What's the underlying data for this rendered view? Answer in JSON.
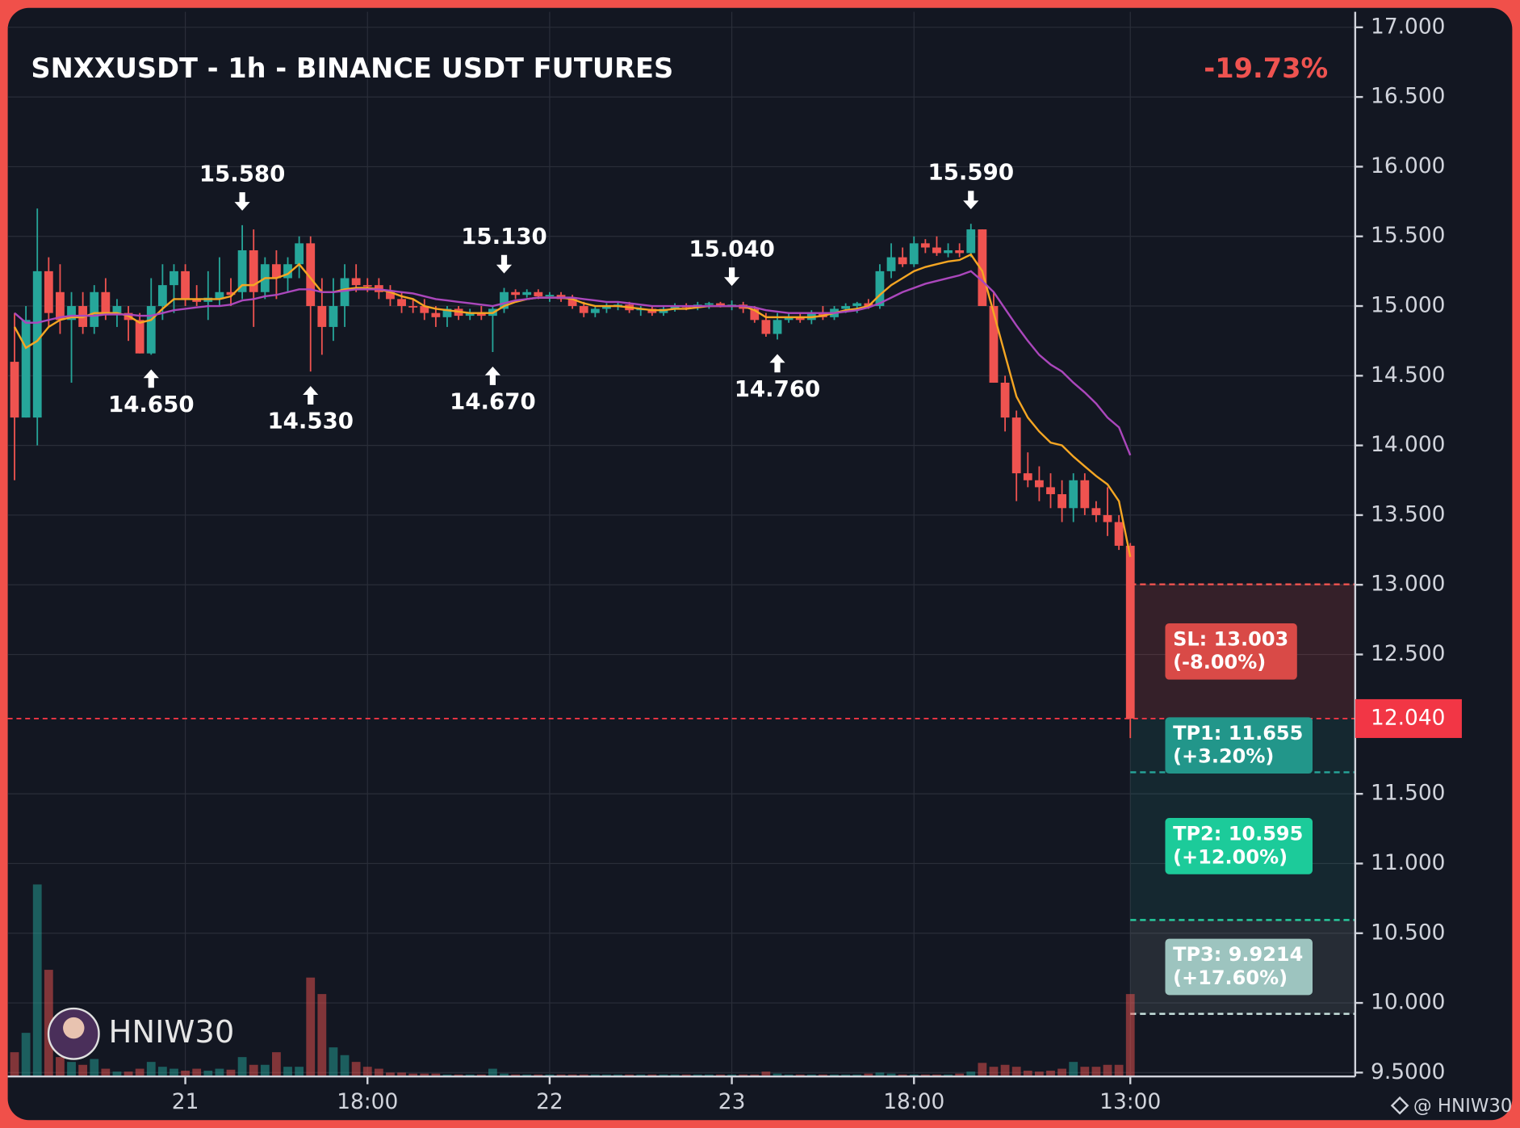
{
  "chart_data": {
    "type": "candlestick",
    "title": "SNXXUSDT - 1h - BINANCE USDT FUTURES",
    "change": "-19.73%",
    "watermark": "HNIW30",
    "credit": "@ HNIW30",
    "up_color": "#26a69a",
    "down_color": "#ef5350",
    "grid": true,
    "ylim": [
      9.5,
      17
    ],
    "yticks": [
      {
        "value": 17,
        "label": "17.000"
      },
      {
        "value": 16.5,
        "label": "16.500"
      },
      {
        "value": 16,
        "label": "16.000"
      },
      {
        "value": 15.5,
        "label": "15.500"
      },
      {
        "value": 15,
        "label": "15.000"
      },
      {
        "value": 14.5,
        "label": "14.500"
      },
      {
        "value": 14,
        "label": "14.000"
      },
      {
        "value": 13.5,
        "label": "13.500"
      },
      {
        "value": 13,
        "label": "13.000"
      },
      {
        "value": 12.5,
        "label": "12.500"
      },
      {
        "value": 11.5,
        "label": "11.500"
      },
      {
        "value": 11,
        "label": "11.000"
      },
      {
        "value": 10.5,
        "label": "10.500"
      },
      {
        "value": 10,
        "label": "10.000"
      },
      {
        "value": 9.5,
        "label": "9.5000"
      }
    ],
    "categories": [
      null,
      null,
      null,
      null,
      null,
      null,
      null,
      null,
      null,
      null,
      null,
      null,
      null,
      null,
      null,
      "21",
      null,
      null,
      null,
      null,
      null,
      null,
      null,
      null,
      null,
      null,
      null,
      null,
      null,
      null,
      null,
      "18:00",
      null,
      null,
      null,
      null,
      null,
      null,
      null,
      null,
      null,
      null,
      null,
      null,
      null,
      null,
      null,
      "22",
      null,
      null,
      null,
      null,
      null,
      null,
      null,
      null,
      null,
      null,
      null,
      null,
      null,
      null,
      null,
      "23",
      null,
      null,
      null,
      null,
      null,
      null,
      null,
      null,
      null,
      null,
      null,
      null,
      null,
      null,
      null,
      "18:00",
      null,
      null,
      null,
      null,
      null,
      null,
      null,
      null,
      null,
      null,
      null,
      null,
      null,
      null,
      null,
      null,
      null,
      null,
      "13:00"
    ],
    "candles": [
      {
        "o": 14.6,
        "h": 14.95,
        "l": 13.75,
        "c": 14.2
      },
      {
        "o": 14.2,
        "h": 15.0,
        "l": 14.2,
        "c": 14.9
      },
      {
        "o": 14.2,
        "h": 15.7,
        "l": 14.0,
        "c": 15.25
      },
      {
        "o": 15.25,
        "h": 15.35,
        "l": 14.85,
        "c": 14.95
      },
      {
        "o": 15.1,
        "h": 15.3,
        "l": 14.8,
        "c": 14.9
      },
      {
        "o": 14.9,
        "h": 15.1,
        "l": 14.45,
        "c": 15.0
      },
      {
        "o": 15.0,
        "h": 15.1,
        "l": 14.8,
        "c": 14.85
      },
      {
        "o": 14.85,
        "h": 15.15,
        "l": 14.8,
        "c": 15.1
      },
      {
        "o": 15.1,
        "h": 15.2,
        "l": 14.9,
        "c": 14.95
      },
      {
        "o": 14.95,
        "h": 15.05,
        "l": 14.85,
        "c": 15.0
      },
      {
        "o": 14.95,
        "h": 15.0,
        "l": 14.75,
        "c": 14.9
      },
      {
        "o": 14.9,
        "h": 14.95,
        "l": 14.66,
        "c": 14.66
      },
      {
        "o": 14.66,
        "h": 15.2,
        "l": 14.65,
        "c": 15.0,
        "low_label": "14.650"
      },
      {
        "o": 15.0,
        "h": 15.3,
        "l": 14.9,
        "c": 15.15
      },
      {
        "o": 15.15,
        "h": 15.3,
        "l": 14.95,
        "c": 15.25
      },
      {
        "o": 15.25,
        "h": 15.3,
        "l": 15.0,
        "c": 15.05
      },
      {
        "o": 15.05,
        "h": 15.15,
        "l": 15.0,
        "c": 15.03
      },
      {
        "o": 15.03,
        "h": 15.25,
        "l": 14.9,
        "c": 15.06
      },
      {
        "o": 15.05,
        "h": 15.35,
        "l": 15.0,
        "c": 15.1
      },
      {
        "o": 15.1,
        "h": 15.2,
        "l": 15.0,
        "c": 15.08
      },
      {
        "o": 15.1,
        "h": 15.58,
        "l": 15.05,
        "c": 15.4,
        "high_label": "15.580"
      },
      {
        "o": 15.4,
        "h": 15.55,
        "l": 14.85,
        "c": 15.1
      },
      {
        "o": 15.1,
        "h": 15.35,
        "l": 15.05,
        "c": 15.3
      },
      {
        "o": 15.3,
        "h": 15.4,
        "l": 15.05,
        "c": 15.2
      },
      {
        "o": 15.2,
        "h": 15.35,
        "l": 15.1,
        "c": 15.3
      },
      {
        "o": 15.3,
        "h": 15.5,
        "l": 15.2,
        "c": 15.45
      },
      {
        "o": 15.45,
        "h": 15.5,
        "l": 14.53,
        "c": 15.0,
        "low_label": "14.530"
      },
      {
        "o": 15.0,
        "h": 15.2,
        "l": 14.65,
        "c": 14.85
      },
      {
        "o": 14.85,
        "h": 15.2,
        "l": 14.75,
        "c": 15.0
      },
      {
        "o": 15.0,
        "h": 15.3,
        "l": 14.85,
        "c": 15.2
      },
      {
        "o": 15.2,
        "h": 15.3,
        "l": 15.1,
        "c": 15.15
      },
      {
        "o": 15.15,
        "h": 15.2,
        "l": 15.1,
        "c": 15.14
      },
      {
        "o": 15.15,
        "h": 15.2,
        "l": 15.05,
        "c": 15.1
      },
      {
        "o": 15.1,
        "h": 15.15,
        "l": 15.0,
        "c": 15.05
      },
      {
        "o": 15.05,
        "h": 15.1,
        "l": 14.95,
        "c": 15.0
      },
      {
        "o": 15.0,
        "h": 15.05,
        "l": 14.95,
        "c": 14.99
      },
      {
        "o": 15.0,
        "h": 15.05,
        "l": 14.9,
        "c": 14.95
      },
      {
        "o": 14.95,
        "h": 15.0,
        "l": 14.85,
        "c": 14.92
      },
      {
        "o": 14.92,
        "h": 15.0,
        "l": 14.85,
        "c": 14.98
      },
      {
        "o": 14.98,
        "h": 15.0,
        "l": 14.9,
        "c": 14.93
      },
      {
        "o": 14.93,
        "h": 14.98,
        "l": 14.9,
        "c": 14.95
      },
      {
        "o": 14.95,
        "h": 15.0,
        "l": 14.9,
        "c": 14.93
      },
      {
        "o": 14.93,
        "h": 15.0,
        "l": 14.67,
        "c": 14.98,
        "low_label": "14.670"
      },
      {
        "o": 14.98,
        "h": 15.13,
        "l": 14.95,
        "c": 15.1,
        "high_label": "15.130"
      },
      {
        "o": 15.1,
        "h": 15.12,
        "l": 15.05,
        "c": 15.08
      },
      {
        "o": 15.08,
        "h": 15.12,
        "l": 15.06,
        "c": 15.1
      },
      {
        "o": 15.1,
        "h": 15.12,
        "l": 15.05,
        "c": 15.07
      },
      {
        "o": 15.07,
        "h": 15.1,
        "l": 15.03,
        "c": 15.08
      },
      {
        "o": 15.08,
        "h": 15.1,
        "l": 15.03,
        "c": 15.05
      },
      {
        "o": 15.05,
        "h": 15.08,
        "l": 14.98,
        "c": 15.0
      },
      {
        "o": 15.0,
        "h": 15.03,
        "l": 14.92,
        "c": 14.95
      },
      {
        "o": 14.95,
        "h": 15.0,
        "l": 14.92,
        "c": 14.98
      },
      {
        "o": 14.98,
        "h": 15.02,
        "l": 14.95,
        "c": 15.0
      },
      {
        "o": 15.0,
        "h": 15.03,
        "l": 14.97,
        "c": 15.01
      },
      {
        "o": 15.01,
        "h": 15.03,
        "l": 14.95,
        "c": 14.97
      },
      {
        "o": 14.97,
        "h": 15.0,
        "l": 14.93,
        "c": 14.98
      },
      {
        "o": 14.98,
        "h": 15.0,
        "l": 14.93,
        "c": 14.95
      },
      {
        "o": 14.95,
        "h": 15.0,
        "l": 14.93,
        "c": 14.98
      },
      {
        "o": 14.98,
        "h": 15.02,
        "l": 14.96,
        "c": 15.0
      },
      {
        "o": 15.0,
        "h": 15.02,
        "l": 14.97,
        "c": 14.99
      },
      {
        "o": 14.99,
        "h": 15.03,
        "l": 14.97,
        "c": 15.01
      },
      {
        "o": 15.01,
        "h": 15.03,
        "l": 14.98,
        "c": 15.02
      },
      {
        "o": 15.02,
        "h": 15.03,
        "l": 14.99,
        "c": 15.0
      },
      {
        "o": 15.0,
        "h": 15.04,
        "l": 14.97,
        "c": 15.01,
        "high_label": "15.040"
      },
      {
        "o": 15.01,
        "h": 15.03,
        "l": 14.95,
        "c": 14.98
      },
      {
        "o": 14.98,
        "h": 15.0,
        "l": 14.88,
        "c": 14.9
      },
      {
        "o": 14.9,
        "h": 14.95,
        "l": 14.78,
        "c": 14.8
      },
      {
        "o": 14.8,
        "h": 14.95,
        "l": 14.76,
        "c": 14.9,
        "low_label": "14.760"
      },
      {
        "o": 14.9,
        "h": 14.95,
        "l": 14.88,
        "c": 14.92
      },
      {
        "o": 14.92,
        "h": 14.95,
        "l": 14.88,
        "c": 14.9
      },
      {
        "o": 14.9,
        "h": 14.97,
        "l": 14.87,
        "c": 14.95
      },
      {
        "o": 14.95,
        "h": 15.0,
        "l": 14.9,
        "c": 14.92
      },
      {
        "o": 14.92,
        "h": 15.0,
        "l": 14.9,
        "c": 14.98
      },
      {
        "o": 14.98,
        "h": 15.02,
        "l": 14.95,
        "c": 15.0
      },
      {
        "o": 15.0,
        "h": 15.03,
        "l": 14.95,
        "c": 15.02
      },
      {
        "o": 15.02,
        "h": 15.05,
        "l": 14.98,
        "c": 15.0
      },
      {
        "o": 15.0,
        "h": 15.3,
        "l": 14.98,
        "c": 15.25
      },
      {
        "o": 15.25,
        "h": 15.45,
        "l": 15.2,
        "c": 15.35
      },
      {
        "o": 15.35,
        "h": 15.42,
        "l": 15.28,
        "c": 15.3
      },
      {
        "o": 15.3,
        "h": 15.5,
        "l": 15.28,
        "c": 15.45
      },
      {
        "o": 15.45,
        "h": 15.48,
        "l": 15.38,
        "c": 15.42
      },
      {
        "o": 15.42,
        "h": 15.5,
        "l": 15.36,
        "c": 15.38
      },
      {
        "o": 15.38,
        "h": 15.45,
        "l": 15.35,
        "c": 15.4
      },
      {
        "o": 15.4,
        "h": 15.45,
        "l": 15.35,
        "c": 15.38
      },
      {
        "o": 15.38,
        "h": 15.59,
        "l": 15.35,
        "c": 15.55,
        "high_label": "15.590"
      },
      {
        "o": 15.55,
        "h": 15.55,
        "l": 15.0,
        "c": 15.0
      },
      {
        "o": 15.0,
        "h": 15.1,
        "l": 14.45,
        "c": 14.45
      },
      {
        "o": 14.45,
        "h": 14.5,
        "l": 14.1,
        "c": 14.2
      },
      {
        "o": 14.2,
        "h": 14.25,
        "l": 13.6,
        "c": 13.8
      },
      {
        "o": 13.8,
        "h": 13.95,
        "l": 13.7,
        "c": 13.75
      },
      {
        "o": 13.75,
        "h": 13.85,
        "l": 13.6,
        "c": 13.7
      },
      {
        "o": 13.7,
        "h": 13.8,
        "l": 13.55,
        "c": 13.65
      },
      {
        "o": 13.65,
        "h": 13.75,
        "l": 13.45,
        "c": 13.55
      },
      {
        "o": 13.55,
        "h": 13.8,
        "l": 13.45,
        "c": 13.75
      },
      {
        "o": 13.75,
        "h": 13.8,
        "l": 13.5,
        "c": 13.55
      },
      {
        "o": 13.55,
        "h": 13.6,
        "l": 13.45,
        "c": 13.5
      },
      {
        "o": 13.5,
        "h": 13.7,
        "l": 13.35,
        "c": 13.45
      },
      {
        "o": 13.45,
        "h": 13.5,
        "l": 13.25,
        "c": 13.28
      },
      {
        "o": 13.28,
        "h": 13.3,
        "l": 11.9,
        "c": 12.04
      }
    ],
    "volumes": [
      25,
      45,
      198,
      110,
      20,
      15,
      12,
      18,
      8,
      5,
      5,
      8,
      15,
      10,
      8,
      6,
      8,
      6,
      8,
      7,
      20,
      12,
      12,
      25,
      10,
      10,
      102,
      85,
      30,
      22,
      15,
      10,
      8,
      4,
      4,
      3,
      3,
      3,
      2,
      2,
      2,
      2,
      8,
      3,
      2,
      2,
      2,
      2,
      2,
      2,
      2,
      2,
      2,
      2,
      2,
      2,
      2,
      2,
      2,
      2,
      2,
      2,
      2,
      2,
      2,
      2,
      5,
      3,
      2,
      2,
      2,
      2,
      2,
      2,
      2,
      3,
      4,
      3,
      2,
      2,
      2,
      2,
      2,
      3,
      5,
      14,
      10,
      12,
      10,
      6,
      5,
      6,
      8,
      15,
      10,
      10,
      12,
      12,
      85
    ],
    "series": [
      {
        "color": "#f5a623",
        "values": [
          14.85,
          14.7,
          14.75,
          14.85,
          14.9,
          14.92,
          14.92,
          14.95,
          14.95,
          14.95,
          14.93,
          14.88,
          14.9,
          14.98,
          15.05,
          15.05,
          15.05,
          15.05,
          15.05,
          15.07,
          15.15,
          15.15,
          15.2,
          15.2,
          15.23,
          15.3,
          15.2,
          15.1,
          15.1,
          15.12,
          15.13,
          15.13,
          15.12,
          15.1,
          15.07,
          15.05,
          15.0,
          14.98,
          14.97,
          14.96,
          14.95,
          14.95,
          14.95,
          15.0,
          15.03,
          15.05,
          15.06,
          15.06,
          15.06,
          15.05,
          15.02,
          15.0,
          15.0,
          15.0,
          14.99,
          14.98,
          14.97,
          14.97,
          14.98,
          14.98,
          14.99,
          15.0,
          15.0,
          15.0,
          15.0,
          14.97,
          14.92,
          14.92,
          14.92,
          14.92,
          14.92,
          14.93,
          14.95,
          14.97,
          14.98,
          15.0,
          15.08,
          15.15,
          15.2,
          15.25,
          15.28,
          15.3,
          15.32,
          15.33,
          15.37,
          15.25,
          14.95,
          14.65,
          14.35,
          14.2,
          14.1,
          14.02,
          14.0,
          13.92,
          13.85,
          13.78,
          13.72,
          13.6,
          13.2
        ]
      },
      {
        "color": "#ab47bc",
        "values": [
          14.95,
          14.88,
          14.88,
          14.9,
          14.92,
          14.93,
          14.93,
          14.93,
          14.94,
          14.94,
          14.94,
          14.93,
          14.93,
          14.95,
          14.97,
          14.98,
          14.99,
          15.0,
          15.0,
          15.01,
          15.04,
          15.05,
          15.07,
          15.08,
          15.1,
          15.12,
          15.12,
          15.1,
          15.1,
          15.11,
          15.12,
          15.12,
          15.12,
          15.11,
          15.1,
          15.09,
          15.07,
          15.05,
          15.04,
          15.03,
          15.02,
          15.01,
          15.0,
          15.02,
          15.04,
          15.05,
          15.06,
          15.06,
          15.06,
          15.06,
          15.05,
          15.04,
          15.03,
          15.03,
          15.02,
          15.01,
          15.0,
          15.0,
          15.0,
          15.0,
          15.0,
          15.0,
          15.0,
          15.0,
          15.0,
          14.99,
          14.97,
          14.96,
          14.95,
          14.95,
          14.95,
          14.95,
          14.95,
          14.96,
          14.97,
          14.99,
          15.02,
          15.06,
          15.1,
          15.13,
          15.16,
          15.18,
          15.2,
          15.22,
          15.25,
          15.18,
          15.1,
          14.98,
          14.86,
          14.75,
          14.65,
          14.58,
          14.53,
          14.45,
          14.38,
          14.3,
          14.2,
          14.13,
          13.93
        ]
      }
    ],
    "current_price": {
      "value": 12.04,
      "label": "12.040",
      "color": "#f23645"
    },
    "levels": [
      {
        "price": 13.003,
        "label": "SL: 13.003",
        "note": "(-8.00%)",
        "color": "#d94a47",
        "line_color": "#ef5350"
      },
      {
        "price": 11.655,
        "label": "TP1: 11.655",
        "note": "(+3.20%)",
        "color": "#22968a",
        "line_color": "#26a69a"
      },
      {
        "price": 10.595,
        "label": "TP2: 10.595",
        "note": "(+12.00%)",
        "color": "#1ccb9a",
        "line_color": "#1ccb9a"
      },
      {
        "price": 9.9214,
        "label": "TP3: 9.9214",
        "note": "(+17.60%)",
        "color": "#9dc4bf",
        "line_color": "#c8e2de"
      }
    ]
  }
}
